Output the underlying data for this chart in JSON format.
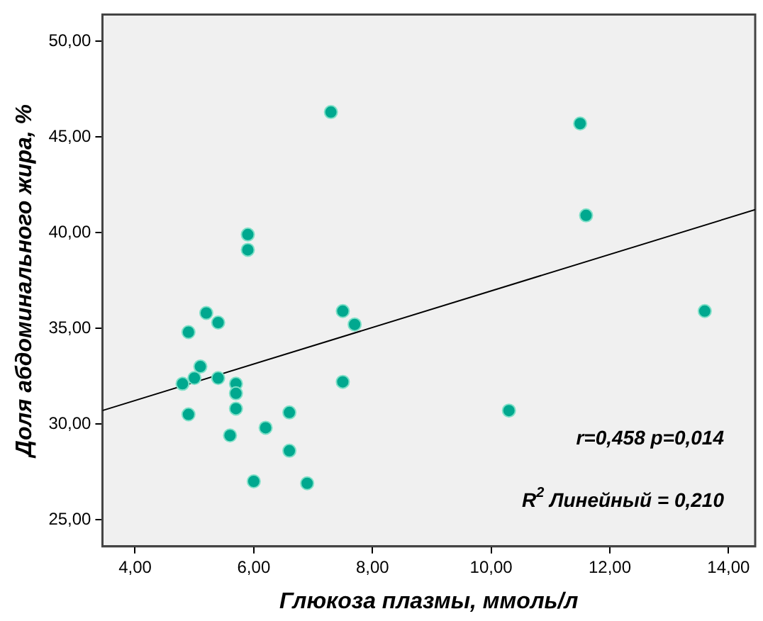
{
  "chart_data": {
    "type": "scatter",
    "xlabel": "Глюкоза плазмы, ммоль/л",
    "ylabel": "Доля абдоминального жира, %",
    "x": [
      7.3,
      5.9,
      5.9,
      11.5,
      11.6,
      13.6,
      10.3,
      5.2,
      5.4,
      4.9,
      5.1,
      4.8,
      5.0,
      5.4,
      5.7,
      5.7,
      5.7,
      4.9,
      5.6,
      6.2,
      6.6,
      6.6,
      6.0,
      6.9,
      7.5,
      7.7,
      7.5
    ],
    "series": [
      {
        "color": "#00a88f",
        "marker": "circle",
        "values": [
          46.3,
          39.9,
          39.1,
          45.7,
          40.9,
          35.9,
          30.7,
          35.8,
          35.3,
          34.8,
          33.0,
          32.1,
          32.4,
          32.4,
          32.1,
          31.6,
          30.8,
          30.5,
          29.4,
          29.8,
          30.6,
          28.6,
          27.0,
          26.9,
          35.9,
          35.2,
          32.2
        ]
      },
      {
        "type": "line",
        "color": "#000000",
        "marker": "none",
        "x": [
          3.45,
          14.45
        ],
        "values": [
          30.7,
          41.2
        ]
      }
    ],
    "xlim": [
      3.45,
      14.45
    ],
    "ylim": [
      23.6,
      51.4
    ],
    "xticks": [
      {
        "value": 4,
        "label": "4,00"
      },
      {
        "value": 6,
        "label": "6,00"
      },
      {
        "value": 8,
        "label": "8,00"
      },
      {
        "value": 10,
        "label": "10,00"
      },
      {
        "value": 12,
        "label": "12,00"
      },
      {
        "value": 14,
        "label": "14,00"
      }
    ],
    "yticks": [
      {
        "value": 25,
        "label": "25,00"
      },
      {
        "value": 30,
        "label": "30,00"
      },
      {
        "value": 35,
        "label": "35,00"
      },
      {
        "value": 40,
        "label": "40,00"
      },
      {
        "value": 45,
        "label": "45,00"
      },
      {
        "value": 50,
        "label": "50,00"
      }
    ],
    "annotations": [
      "r=0,458 p=0,014",
      "R$^{2}$ Линейный = 0,210"
    ],
    "grid": false,
    "legend": false
  }
}
